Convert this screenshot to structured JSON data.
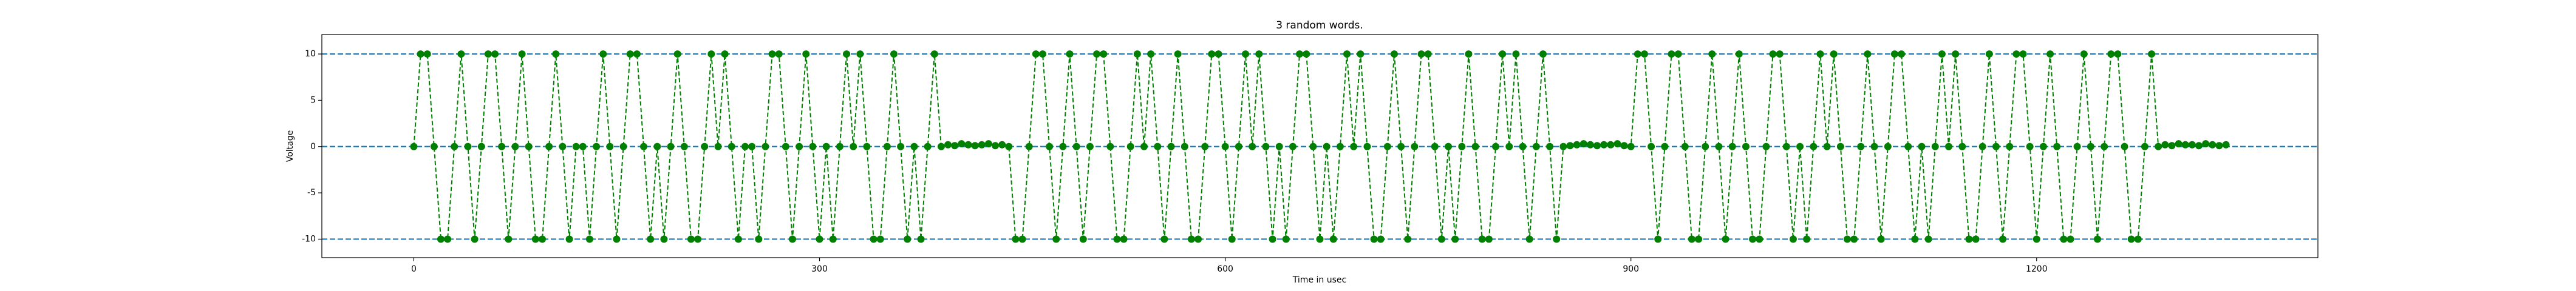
{
  "chart_data": {
    "type": "line",
    "title": "3 random words.",
    "xlabel": "Time in usec",
    "ylabel": "Voltage",
    "xlim": [
      -68,
      1408
    ],
    "ylim": [
      -12,
      12.1
    ],
    "xticks": [
      0,
      300,
      600,
      900,
      1200
    ],
    "yticks": [
      -10,
      -5,
      0,
      5,
      10
    ],
    "hlines": [
      10,
      0,
      -10
    ],
    "hline_color": "#1f77b4",
    "series": [
      {
        "color": "#008000",
        "x": [
          0,
          5,
          10,
          15,
          20,
          25,
          30,
          35,
          40,
          45,
          50,
          55,
          60,
          65,
          70,
          75,
          80,
          85,
          90,
          95,
          100,
          105,
          110,
          115,
          120,
          125,
          130,
          135,
          140,
          145,
          150,
          155,
          160,
          165,
          170,
          175,
          180,
          185,
          190,
          195,
          200,
          205,
          210,
          215,
          220,
          225,
          230,
          235,
          240,
          245,
          250,
          255,
          260,
          265,
          270,
          275,
          280,
          285,
          290,
          295,
          300,
          305,
          310,
          315,
          320,
          325,
          330,
          335,
          340,
          345,
          350,
          355,
          360,
          365,
          370,
          375,
          380,
          385,
          390,
          395,
          400,
          405,
          410,
          415,
          420,
          425,
          430,
          435,
          440,
          445,
          450,
          455,
          460,
          465,
          470,
          475,
          480,
          485,
          490,
          495,
          500,
          505,
          510,
          515,
          520,
          525,
          530,
          535,
          540,
          545,
          550,
          555,
          560,
          565,
          570,
          575,
          580,
          585,
          590,
          595,
          600,
          605,
          610,
          615,
          620,
          625,
          630,
          635,
          640,
          645,
          650,
          655,
          660,
          665,
          670,
          675,
          680,
          685,
          690,
          695,
          700,
          705,
          710,
          715,
          720,
          725,
          730,
          735,
          740,
          745,
          750,
          755,
          760,
          765,
          770,
          775,
          780,
          785,
          790,
          795,
          800,
          805,
          810,
          815,
          820,
          825,
          830,
          835,
          840,
          845,
          850,
          855,
          860,
          865,
          870,
          875,
          880,
          885,
          890,
          895,
          900,
          905,
          910,
          915,
          920,
          925,
          930,
          935,
          940,
          945,
          950,
          955,
          960,
          965,
          970,
          975,
          980,
          985,
          990,
          995,
          1000,
          1005,
          1010,
          1015,
          1020,
          1025,
          1030,
          1035,
          1040,
          1045,
          1050,
          1055,
          1060,
          1065,
          1070,
          1075,
          1080,
          1085,
          1090,
          1095,
          1100,
          1105,
          1110,
          1115,
          1120,
          1125,
          1130,
          1135,
          1140,
          1145,
          1150,
          1155,
          1160,
          1165,
          1170,
          1175,
          1180,
          1185,
          1190,
          1195,
          1200,
          1205,
          1210,
          1215,
          1220,
          1225,
          1230,
          1235,
          1240,
          1245,
          1250,
          1255,
          1260,
          1265,
          1270,
          1275,
          1280,
          1285,
          1290,
          1295,
          1300,
          1305,
          1310,
          1315,
          1320,
          1325,
          1330,
          1335,
          1340
        ],
        "values": [
          0,
          10,
          10,
          0,
          -10,
          -10,
          0,
          10,
          0,
          -10,
          0,
          10,
          10,
          0,
          -10,
          0,
          10,
          0,
          -10,
          -10,
          0,
          10,
          0,
          -10,
          0,
          0,
          -10,
          0,
          10,
          0,
          -10,
          0,
          10,
          10,
          0,
          -10,
          0,
          -10,
          0,
          10,
          0,
          -10,
          -10,
          0,
          10,
          0,
          10,
          0,
          -10,
          0,
          0,
          -10,
          0,
          10,
          10,
          0,
          -10,
          0,
          10,
          0,
          -10,
          0,
          -10,
          0,
          10,
          0,
          10,
          0,
          -10,
          -10,
          0,
          10,
          0,
          -10,
          0,
          -10,
          0,
          10,
          0,
          0.2,
          0.1,
          0.3,
          0.2,
          0.1,
          0.2,
          0.3,
          0.1,
          0.2,
          0,
          -10,
          -10,
          0,
          10,
          10,
          0,
          -10,
          0,
          10,
          0,
          -10,
          0,
          10,
          10,
          0,
          -10,
          -10,
          0,
          10,
          0,
          10,
          0,
          -10,
          0,
          10,
          0,
          -10,
          -10,
          0,
          10,
          10,
          0,
          -10,
          0,
          10,
          0,
          10,
          0,
          -10,
          0,
          -10,
          0,
          10,
          10,
          0,
          -10,
          0,
          -10,
          0,
          10,
          0,
          10,
          0,
          -10,
          -10,
          0,
          10,
          0,
          -10,
          0,
          10,
          10,
          0,
          -10,
          0,
          -10,
          0,
          10,
          0,
          -10,
          -10,
          0,
          10,
          0,
          10,
          0,
          -10,
          0,
          10,
          0,
          -10,
          0,
          0.1,
          0.2,
          0.3,
          0.2,
          0.1,
          0.2,
          0.2,
          0.3,
          0.1,
          0,
          10,
          10,
          0,
          -10,
          0,
          10,
          10,
          0,
          -10,
          -10,
          0,
          10,
          0,
          -10,
          0,
          10,
          0,
          -10,
          -10,
          0,
          10,
          10,
          0,
          -10,
          0,
          -10,
          0,
          10,
          0,
          10,
          0,
          -10,
          -10,
          0,
          10,
          0,
          -10,
          0,
          10,
          10,
          0,
          -10,
          0,
          -10,
          0,
          10,
          0,
          10,
          0,
          -10,
          -10,
          0,
          10,
          0,
          -10,
          0,
          10,
          10,
          0,
          -10,
          0,
          10,
          0,
          -10,
          -10,
          0,
          10,
          0,
          -10,
          0,
          10,
          10,
          0,
          -10,
          -10,
          0,
          10,
          0,
          0.2,
          0.1,
          0.3,
          0.2,
          0.2,
          0.1,
          0.3,
          0.2,
          0.1,
          0.2
        ]
      }
    ]
  }
}
